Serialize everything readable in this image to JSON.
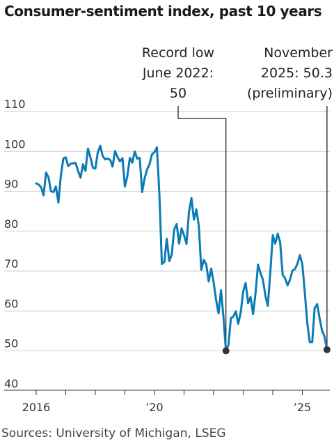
{
  "title": "Consumer-sentiment index, past 10 years",
  "source": "Sources: University of Michigan, LSEG",
  "chart_data": {
    "type": "line",
    "title": "Consumer-sentiment index, past 10 years",
    "xlabel": "",
    "ylabel": "",
    "ylim": [
      40,
      110
    ],
    "yticks": [
      "110",
      "100",
      "90",
      "80",
      "70",
      "60",
      "50",
      "40"
    ],
    "xticks": [
      {
        "label": "2016",
        "date": "2016-01"
      },
      {
        "label": "’20",
        "date": "2020-01"
      },
      {
        "label": "’25",
        "date": "2025-01"
      }
    ],
    "grid": "horizontal",
    "line_color": "#0a7bb5",
    "series": [
      {
        "x": [
          "2016-01",
          "2016-02",
          "2016-03",
          "2016-04",
          "2016-05",
          "2016-06",
          "2016-07",
          "2016-08",
          "2016-09",
          "2016-10",
          "2016-11",
          "2016-12",
          "2017-01",
          "2017-02",
          "2017-03",
          "2017-04",
          "2017-05",
          "2017-06",
          "2017-07",
          "2017-08",
          "2017-09",
          "2017-10",
          "2017-11",
          "2017-12",
          "2018-01",
          "2018-02",
          "2018-03",
          "2018-04",
          "2018-05",
          "2018-06",
          "2018-07",
          "2018-08",
          "2018-09",
          "2018-10",
          "2018-11",
          "2018-12",
          "2019-01",
          "2019-02",
          "2019-03",
          "2019-04",
          "2019-05",
          "2019-06",
          "2019-07",
          "2019-08",
          "2019-09",
          "2019-10",
          "2019-11",
          "2019-12",
          "2020-01",
          "2020-02",
          "2020-03",
          "2020-04",
          "2020-05",
          "2020-06",
          "2020-07",
          "2020-08",
          "2020-09",
          "2020-10",
          "2020-11",
          "2020-12",
          "2021-01",
          "2021-02",
          "2021-03",
          "2021-04",
          "2021-05",
          "2021-06",
          "2021-07",
          "2021-08",
          "2021-09",
          "2021-10",
          "2021-11",
          "2021-12",
          "2022-01",
          "2022-02",
          "2022-03",
          "2022-04",
          "2022-05",
          "2022-06",
          "2022-07",
          "2022-08",
          "2022-09",
          "2022-10",
          "2022-11",
          "2022-12",
          "2023-01",
          "2023-02",
          "2023-03",
          "2023-04",
          "2023-05",
          "2023-06",
          "2023-07",
          "2023-08",
          "2023-09",
          "2023-10",
          "2023-11",
          "2023-12",
          "2024-01",
          "2024-02",
          "2024-03",
          "2024-04",
          "2024-05",
          "2024-06",
          "2024-07",
          "2024-08",
          "2024-09",
          "2024-10",
          "2024-11",
          "2024-12",
          "2025-01",
          "2025-02",
          "2025-03",
          "2025-04",
          "2025-05",
          "2025-06",
          "2025-07",
          "2025-08",
          "2025-09",
          "2025-10",
          "2025-11"
        ],
        "values": [
          92.0,
          91.7,
          91.0,
          89.0,
          94.7,
          93.5,
          90.0,
          89.8,
          91.2,
          87.2,
          93.8,
          98.2,
          98.5,
          96.3,
          96.9,
          97.0,
          97.1,
          95.1,
          93.4,
          96.8,
          95.1,
          100.7,
          98.5,
          95.9,
          95.7,
          99.7,
          101.4,
          98.8,
          98.0,
          98.2,
          97.9,
          96.2,
          100.1,
          98.6,
          97.5,
          98.3,
          91.2,
          93.8,
          98.4,
          97.2,
          100.0,
          98.2,
          98.4,
          89.8,
          93.2,
          95.5,
          96.8,
          99.3,
          99.8,
          101.0,
          89.1,
          71.8,
          72.3,
          78.1,
          72.5,
          74.1,
          80.4,
          81.8,
          76.9,
          80.7,
          79.0,
          76.8,
          84.9,
          88.3,
          82.9,
          85.5,
          81.2,
          70.3,
          72.8,
          71.7,
          67.4,
          70.6,
          67.2,
          62.8,
          59.4,
          65.2,
          58.4,
          50.0,
          51.5,
          58.2,
          58.6,
          59.9,
          56.8,
          59.7,
          64.9,
          67.0,
          62.0,
          63.5,
          59.2,
          64.4,
          71.6,
          69.5,
          67.9,
          63.8,
          61.3,
          69.7,
          79.0,
          76.9,
          79.4,
          77.2,
          69.1,
          68.2,
          66.4,
          67.9,
          70.1,
          70.5,
          71.8,
          74.0,
          71.7,
          64.7,
          57.0,
          52.2,
          52.2,
          60.7,
          61.7,
          58.2,
          55.1,
          53.6,
          50.3
        ]
      }
    ],
    "annotations": [
      {
        "text": [
          "Record low",
          "June 2022:",
          "50"
        ],
        "date": "2022-06",
        "value": 50.0
      },
      {
        "text": [
          "November",
          "2025: 50.3",
          "(preliminary)"
        ],
        "date": "2025-11",
        "value": 50.3
      }
    ]
  }
}
